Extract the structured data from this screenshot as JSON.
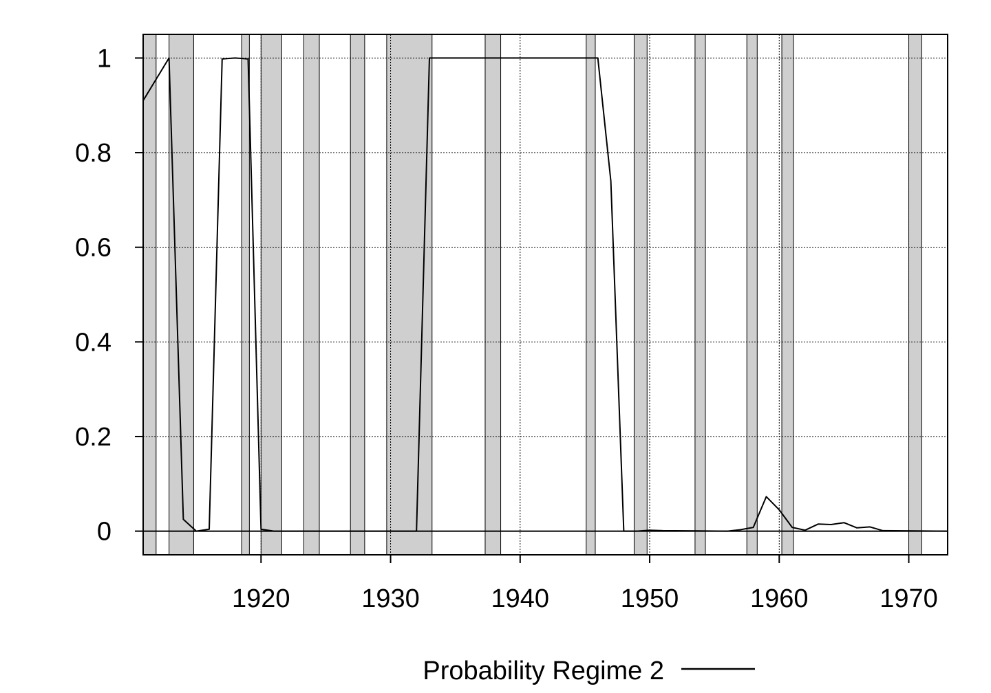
{
  "chart_data": {
    "type": "line",
    "title": "",
    "xlabel": "",
    "ylabel": "",
    "xlim": [
      1910.9,
      1973.0
    ],
    "ylim": [
      -0.05,
      1.05
    ],
    "xticks": [
      1920,
      1930,
      1940,
      1950,
      1960,
      1970
    ],
    "yticks": [
      0,
      0.2,
      0.4,
      0.6,
      0.8,
      1
    ],
    "xtick_labels": [
      "1920",
      "1930",
      "1940",
      "1950",
      "1960",
      "1970"
    ],
    "ytick_labels": [
      "0",
      "0.2",
      "0.4",
      "0.6",
      "0.8",
      "1"
    ],
    "grid": true,
    "legend_position": "bottom",
    "shaded_periods": [
      [
        1910.9,
        1911.9
      ],
      [
        1912.9,
        1914.8
      ],
      [
        1918.5,
        1919.1
      ],
      [
        1920.0,
        1921.6
      ],
      [
        1923.3,
        1924.5
      ],
      [
        1926.9,
        1928.0
      ],
      [
        1929.7,
        1933.2
      ],
      [
        1937.3,
        1938.5
      ],
      [
        1945.1,
        1945.8
      ],
      [
        1948.8,
        1949.8
      ],
      [
        1953.5,
        1954.3
      ],
      [
        1957.5,
        1958.3
      ],
      [
        1960.2,
        1961.1
      ],
      [
        1970.0,
        1971.0
      ]
    ],
    "series": [
      {
        "name": "Probability Regime 2",
        "color": "#000000",
        "x": [
          1910.9,
          1912.9,
          1914.0,
          1915.0,
          1916.0,
          1917.0,
          1918.0,
          1919.0,
          1920.0,
          1921.0,
          1922.0,
          1932.0,
          1933.0,
          1946.0,
          1947.0,
          1948.0,
          1949.0,
          1950.0,
          1951.0,
          1956.0,
          1957.0,
          1958.0,
          1959.0,
          1960.0,
          1961.0,
          1962.0,
          1963.0,
          1964.0,
          1965.0,
          1966.0,
          1967.0,
          1968.0,
          1973.0
        ],
        "values": [
          0.91,
          1.0,
          0.025,
          0.0,
          0.004,
          0.998,
          1.0,
          0.998,
          0.004,
          0.0,
          0.0,
          0.0,
          1.0,
          1.0,
          0.74,
          0.0,
          0.0,
          0.002,
          0.001,
          0.0,
          0.003,
          0.008,
          0.073,
          0.045,
          0.008,
          0.002,
          0.015,
          0.014,
          0.018,
          0.007,
          0.009,
          0.001,
          0.0
        ]
      }
    ]
  }
}
